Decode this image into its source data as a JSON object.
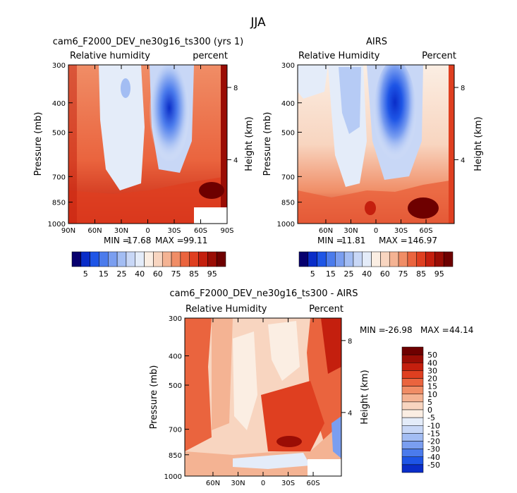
{
  "title": "JJA",
  "chart_data": [
    {
      "type": "heatmap",
      "title": "cam6_F2000_DEV_ne30g16_ts300 (yrs 1)",
      "left_label": "Relative humidity",
      "right_label": "percent",
      "ylabel": "Pressure (mb)",
      "y2label": "Height (km)",
      "y_ticks": [
        "300",
        "400",
        "500",
        "700",
        "850",
        "1000"
      ],
      "y2_ticks": [
        "8",
        "4"
      ],
      "x_ticks": [
        "90N",
        "60N",
        "30N",
        "0",
        "30S",
        "60S",
        "90S"
      ],
      "stats": {
        "min_label": "MIN =",
        "min": "17.68",
        "max_label": "MAX =",
        "max": "99.11"
      },
      "cbar_levels": [
        "5",
        "15",
        "25",
        "40",
        "60",
        "75",
        "85",
        "95"
      ]
    },
    {
      "type": "heatmap",
      "title": "AIRS",
      "left_label": "Relative Humidity",
      "right_label": "Percent",
      "ylabel": "Pressure (mb)",
      "y2label": "Height (km)",
      "y_ticks": [
        "300",
        "400",
        "500",
        "700",
        "850",
        "1000"
      ],
      "y2_ticks": [
        "8",
        "4"
      ],
      "x_ticks": [
        "60N",
        "30N",
        "0",
        "30S",
        "60S"
      ],
      "stats": {
        "min_label": "MIN =",
        "min": "11.81",
        "max_label": "MAX =",
        "max": "146.97"
      },
      "cbar_levels": [
        "5",
        "15",
        "25",
        "40",
        "60",
        "75",
        "85",
        "95"
      ]
    },
    {
      "type": "heatmap",
      "title": "cam6_F2000_DEV_ne30g16_ts300 - AIRS",
      "left_label": "Relative Humidity",
      "right_label": "Percent",
      "ylabel": "Pressure (mb)",
      "y2label": "Height (km)",
      "y_ticks": [
        "300",
        "400",
        "500",
        "700",
        "850",
        "1000"
      ],
      "y2_ticks": [
        "8",
        "4"
      ],
      "x_ticks": [
        "60N",
        "30N",
        "0",
        "30S",
        "60S"
      ],
      "stats": {
        "min_label": "MIN =",
        "min": "-26.98",
        "max_label": "MAX =",
        "max": "44.14"
      },
      "cbar_levels": [
        "50",
        "40",
        "30",
        "20",
        "15",
        "10",
        "5",
        "0",
        "-5",
        "-10",
        "-15",
        "-20",
        "-30",
        "-40",
        "-50"
      ]
    }
  ],
  "colors": {
    "abs_scale": [
      "#07006e",
      "#0a2dc8",
      "#1e55e6",
      "#4b7bec",
      "#7a9ef0",
      "#a3bdf3",
      "#c8d7f6",
      "#e4ecf9",
      "#fbeee3",
      "#f8d5c0",
      "#f4b393",
      "#f08d66",
      "#ea643e",
      "#df3f20",
      "#c41f0e",
      "#9a0d05",
      "#6e0000"
    ],
    "diff_scale": [
      "#6e0000",
      "#9a0d05",
      "#c41f0e",
      "#df3f20",
      "#ea643e",
      "#f08d66",
      "#f4b393",
      "#f8d5c0",
      "#fbeee3",
      "#e4ecf9",
      "#c8d7f6",
      "#a3bdf3",
      "#7a9ef0",
      "#4b7bec",
      "#1e55e6",
      "#0a2dc8"
    ]
  }
}
